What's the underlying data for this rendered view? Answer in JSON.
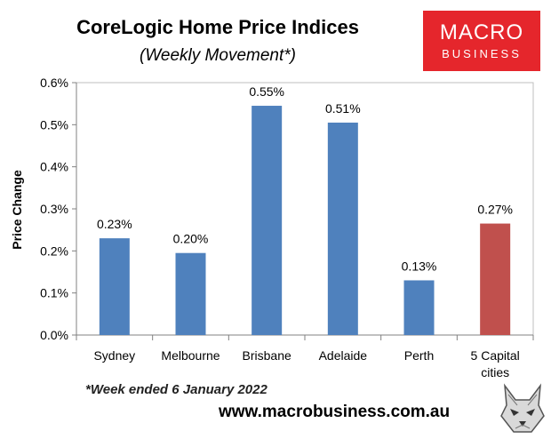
{
  "header": {
    "title": "CoreLogic Home Price Indices",
    "subtitle": "(Weekly Movement*)"
  },
  "logo": {
    "line1": "MACRO",
    "line2": "BUSINESS",
    "color": "#e5262c"
  },
  "footer": {
    "note": "*Week ended 6 January 2022",
    "url": "www.macrobusiness.com.au",
    "mascot_icon": "wolf-head-icon"
  },
  "chart_data": {
    "type": "bar",
    "categories": [
      "Sydney",
      "Melbourne",
      "Brisbane",
      "Adelaide",
      "Perth",
      "5 Capital cities"
    ],
    "category_lines": [
      [
        "Sydney"
      ],
      [
        "Melbourne"
      ],
      [
        "Brisbane"
      ],
      [
        "Adelaide"
      ],
      [
        "Perth"
      ],
      [
        "5 Capital",
        "cities"
      ]
    ],
    "values": [
      0.23,
      0.195,
      0.545,
      0.505,
      0.13,
      0.265
    ],
    "data_labels": [
      "0.23%",
      "0.20%",
      "0.55%",
      "0.51%",
      "0.13%",
      "0.27%"
    ],
    "bar_colors": [
      "#4f81bd",
      "#4f81bd",
      "#4f81bd",
      "#4f81bd",
      "#4f81bd",
      "#c0504d"
    ],
    "ylabel": "Price Change",
    "ylim": [
      0,
      0.6
    ],
    "yticks": [
      0,
      0.1,
      0.2,
      0.3,
      0.4,
      0.5,
      0.6
    ],
    "ytick_labels": [
      "0.0%",
      "0.1%",
      "0.2%",
      "0.3%",
      "0.4%",
      "0.5%",
      "0.6%"
    ],
    "grid": false,
    "legend": "none"
  }
}
